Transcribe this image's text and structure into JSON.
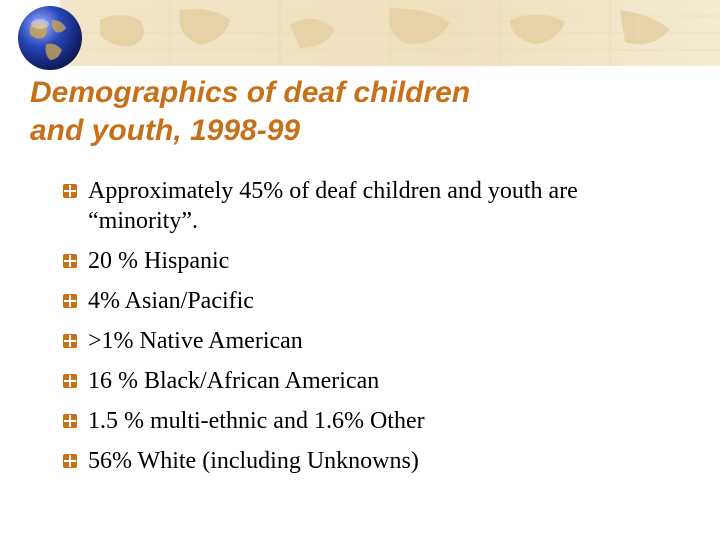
{
  "slide": {
    "title_line1": "Demographics of deaf children",
    "title_line2": "and youth, 1998-99"
  },
  "bullets": [
    "Approximately 45% of deaf children and youth are “minority”.",
    "20 % Hispanic",
    "4% Asian/Pacific",
    ">1% Native American",
    "16 % Black/African American",
    "1.5 % multi-ethnic and 1.6% Other",
    "56% White (including Unknowns)"
  ],
  "theme": {
    "title_color": "#c7701a",
    "bullet_color": "#c7701a",
    "banner_color": "#f1e6c9"
  },
  "icons": {
    "logo": "globe-icon",
    "bullet": "plus-box-bullet-icon"
  }
}
